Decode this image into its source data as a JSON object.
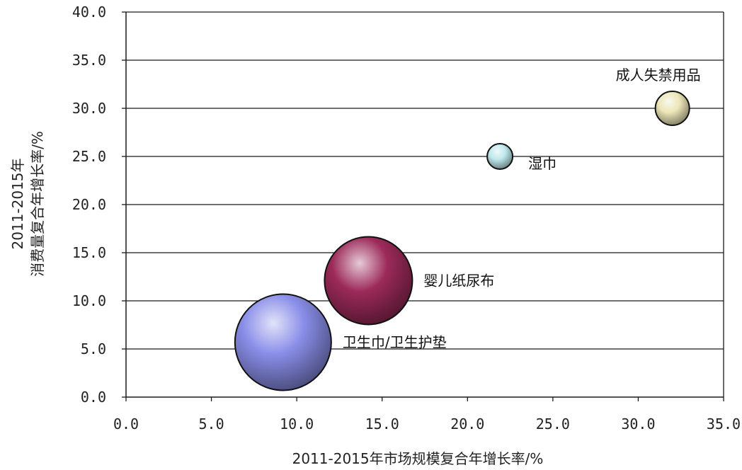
{
  "chart_data": {
    "type": "bubble",
    "title": "",
    "xlabel": "2011-2015年市场规模复合年增长率/%",
    "ylabel_lines": [
      "2011-2015年",
      "消费量复合年增长率/%"
    ],
    "xlim": [
      0,
      35
    ],
    "ylim": [
      0,
      40
    ],
    "x_ticks": [
      "0.0",
      "5.0",
      "10.0",
      "15.0",
      "20.0",
      "25.0",
      "30.0",
      "35.0"
    ],
    "y_ticks": [
      "0.0",
      "5.0",
      "10.0",
      "15.0",
      "20.0",
      "25.0",
      "30.0",
      "35.0",
      "40.0"
    ],
    "grid": "horizontal",
    "legend": "none",
    "points": [
      {
        "label": "卫生巾/卫生护垫",
        "x": 9.2,
        "y": 5.7,
        "size": 68,
        "color": "#8a8ee8",
        "label_side": "right"
      },
      {
        "label": "婴儿纸尿布",
        "x": 14.2,
        "y": 12.1,
        "size": 62,
        "color": "#9c2a5a",
        "label_side": "right"
      },
      {
        "label": "湿巾",
        "x": 21.9,
        "y": 25.0,
        "size": 18,
        "color": "#bfe8ec",
        "label_side": "right-below"
      },
      {
        "label": "成人失禁用品",
        "x": 32.0,
        "y": 30.0,
        "size": 24,
        "color": "#ece6b8",
        "label_side": "above"
      }
    ]
  }
}
